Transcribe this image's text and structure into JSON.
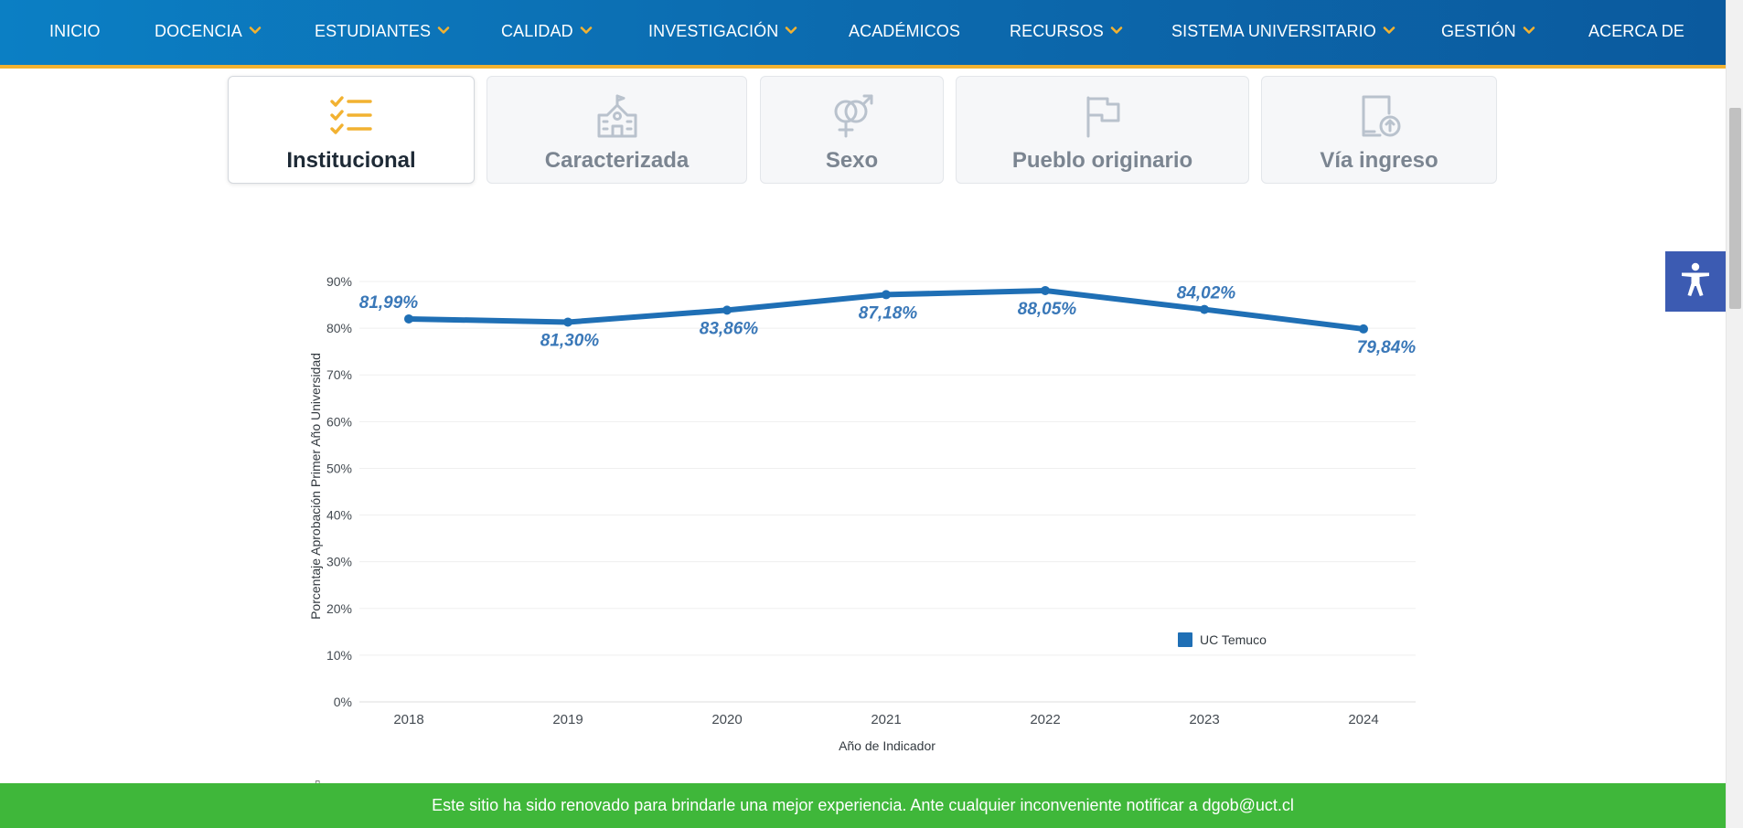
{
  "nav": {
    "items": [
      {
        "label": "INICIO",
        "dropdown": false
      },
      {
        "label": "DOCENCIA",
        "dropdown": true
      },
      {
        "label": "ESTUDIANTES",
        "dropdown": true
      },
      {
        "label": "CALIDAD",
        "dropdown": true
      },
      {
        "label": "INVESTIGACIÓN",
        "dropdown": true
      },
      {
        "label": "ACADÉMICOS",
        "dropdown": false
      },
      {
        "label": "RECURSOS",
        "dropdown": true
      },
      {
        "label": "SISTEMA UNIVERSITARIO",
        "dropdown": true
      },
      {
        "label": "GESTIÓN",
        "dropdown": true
      },
      {
        "label": "ACERCA DE",
        "dropdown": false
      }
    ],
    "accent_color": "#f2b231"
  },
  "tabs": [
    {
      "label": "Institucional",
      "icon": "checklist-icon",
      "active": true
    },
    {
      "label": "Caracterizada",
      "icon": "school-building-icon",
      "active": false
    },
    {
      "label": "Sexo",
      "icon": "gender-icon",
      "active": false
    },
    {
      "label": "Pueblo originario",
      "icon": "flag-icon",
      "active": false
    },
    {
      "label": "Vía ingreso",
      "icon": "document-upload-icon",
      "active": false
    }
  ],
  "accessibility": {
    "icon": "accessibility-person-icon",
    "color": "#3c5bb2"
  },
  "chart_data": {
    "type": "line",
    "x": [
      "2018",
      "2019",
      "2020",
      "2021",
      "2022",
      "2023",
      "2024"
    ],
    "series": [
      {
        "name": "UC Temuco",
        "color": "#1f6fb5",
        "values": [
          81.99,
          81.3,
          83.86,
          87.18,
          88.05,
          84.02,
          79.84
        ],
        "labels": [
          "81,99%",
          "81,30%",
          "83,86%",
          "87,18%",
          "88,05%",
          "84,02%",
          "79,84%"
        ]
      }
    ],
    "xlabel": "Año de Indicador",
    "ylabel": "Porcentaje Aprobación Primer Año Universidad",
    "ylim": [
      0,
      90
    ],
    "yticks": [
      "0%",
      "10%",
      "20%",
      "30%",
      "40%",
      "50%",
      "60%",
      "70%",
      "80%",
      "90%"
    ],
    "grid": true,
    "legend_position": "bottom-right"
  },
  "banner": {
    "text": "Este sitio ha sido renovado para brindarle una mejor experiencia. Ante cualquier inconveniente notificar a dgob@uct.cl",
    "color": "#3fb73a"
  }
}
